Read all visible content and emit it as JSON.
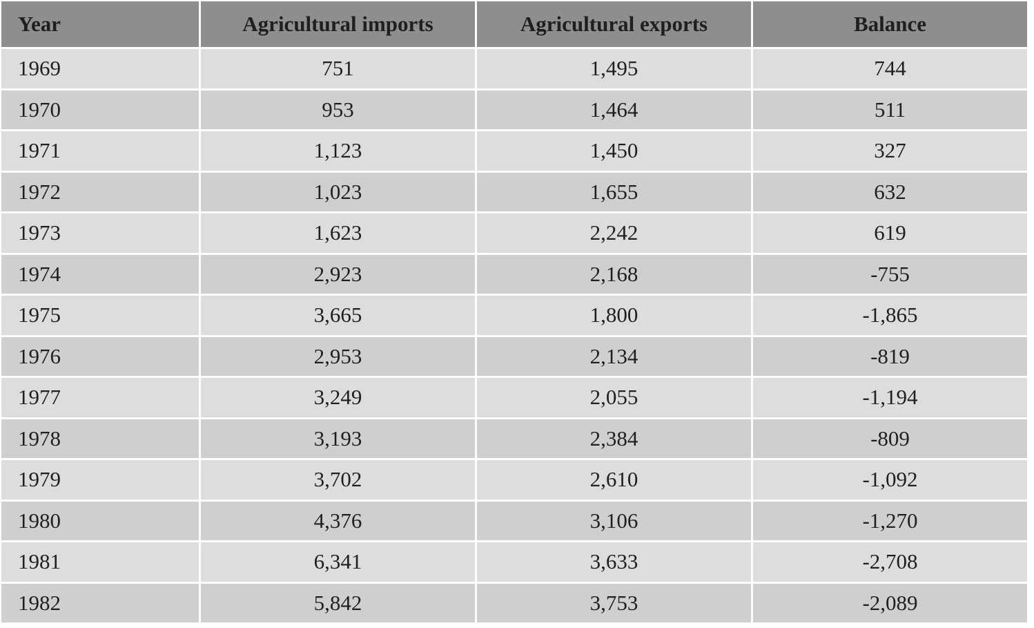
{
  "table": {
    "header": [
      "Year",
      "Agricultural imports",
      "Agricultural exports",
      "Balance"
    ],
    "rows": [
      [
        "1969",
        "751",
        "1,495",
        "744"
      ],
      [
        "1970",
        "953",
        "1,464",
        "511"
      ],
      [
        "1971",
        "1,123",
        "1,450",
        "327"
      ],
      [
        "1972",
        "1,023",
        "1,655",
        "632"
      ],
      [
        "1973",
        "1,623",
        "2,242",
        "619"
      ],
      [
        "1974",
        "2,923",
        "2,168",
        "-755"
      ],
      [
        "1975",
        "3,665",
        "1,800",
        "-1,865"
      ],
      [
        "1976",
        "2,953",
        "2,134",
        "-819"
      ],
      [
        "1977",
        "3,249",
        "2,055",
        "-1,194"
      ],
      [
        "1978",
        "3,193",
        "2,384",
        "-809"
      ],
      [
        "1979",
        "3,702",
        "2,610",
        "-1,092"
      ],
      [
        "1980",
        "4,376",
        "3,106",
        "-1,270"
      ],
      [
        "1981",
        "6,341",
        "3,633",
        "-2,708"
      ],
      [
        "1982",
        "5,842",
        "3,753",
        "-2,089"
      ]
    ]
  }
}
